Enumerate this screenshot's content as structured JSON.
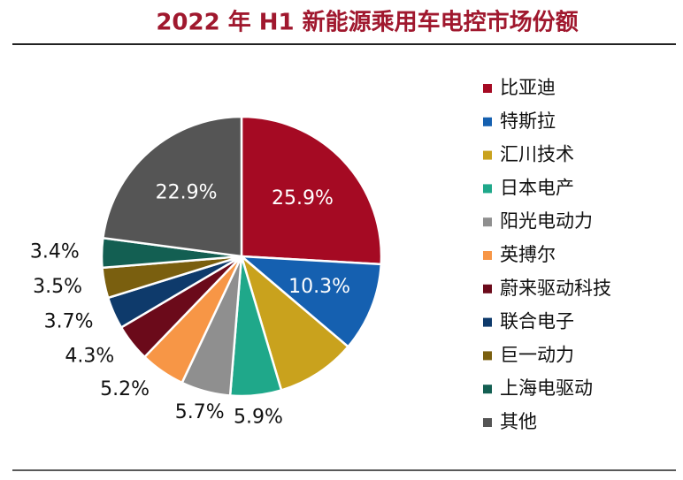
{
  "chart_data": {
    "type": "pie",
    "title": "2022 年 H1 新能源乘用车电控市场份额",
    "categories": [
      "比亚迪",
      "特斯拉",
      "汇川技术",
      "日本电产",
      "阳光电动力",
      "英搏尔",
      "蔚来驱动科技",
      "联合电子",
      "巨一动力",
      "上海电驱动",
      "其他"
    ],
    "values": [
      25.9,
      10.3,
      9.2,
      5.9,
      5.7,
      5.2,
      4.3,
      3.7,
      3.5,
      3.4,
      22.9
    ],
    "value_labels": [
      "25.9%",
      "10.3%",
      null,
      "5.9%",
      "5.7%",
      "5.2%",
      "4.3%",
      "3.7%",
      "3.5%",
      "3.4%",
      "22.9%"
    ],
    "colors": [
      "#a50a23",
      "#1560b0",
      "#c9a21d",
      "#1fa88a",
      "#8f8f8f",
      "#f79646",
      "#6b0a1a",
      "#0e3a6b",
      "#7a5f0f",
      "#135f52",
      "#555555"
    ],
    "legend": "right"
  }
}
